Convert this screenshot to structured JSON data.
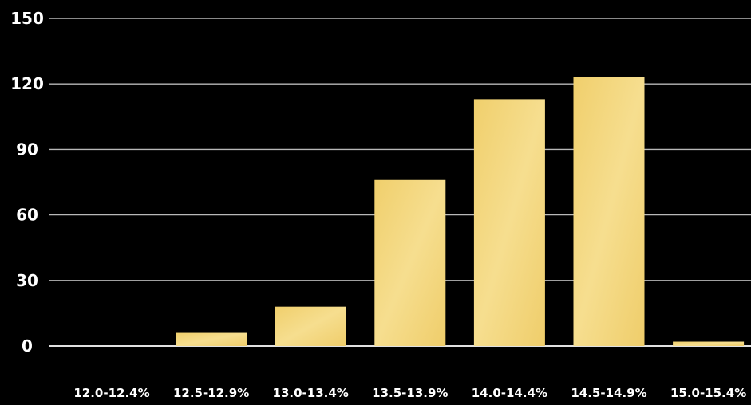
{
  "chart_data": {
    "type": "bar",
    "categories": [
      "12.0-12.4%",
      "12.5-12.9%",
      "13.0-13.4%",
      "13.5-13.9%",
      "14.0-14.4%",
      "14.5-14.9%",
      "15.0-15.4%"
    ],
    "values": [
      0,
      6,
      18,
      76,
      113,
      123,
      2
    ],
    "yticks": [
      "0",
      "30",
      "60",
      "90",
      "120",
      "150"
    ],
    "ylim": [
      0,
      150
    ],
    "grid": true,
    "legend": "none",
    "colors": {
      "background": "#000000",
      "bar": "#f2d377",
      "bar_highlight": "#f7e29b",
      "grid": "#b8b8b8",
      "text": "#ffffff"
    }
  }
}
